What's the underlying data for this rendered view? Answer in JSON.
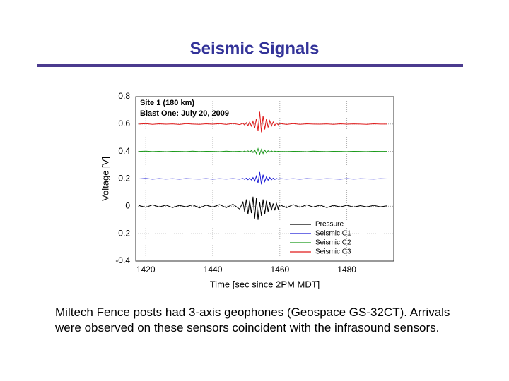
{
  "slide": {
    "title": "Seismic Signals",
    "body": "Miltech Fence posts had 3-axis geophones (Geospace GS-32CT). Arrivals were observed on these sensors coincident with the infrasound sensors."
  },
  "chart_data": {
    "type": "line",
    "annotations": [
      "Site 1 (180 km)",
      "Blast One: July 20, 2009"
    ],
    "x_label": "Time [sec since 2PM MDT]",
    "y_label": "Voltage [V]",
    "x": [
      1418,
      1420,
      1422,
      1424,
      1426,
      1428,
      1430,
      1432,
      1434,
      1436,
      1438,
      1440,
      1442,
      1444,
      1446,
      1448,
      1449,
      1449.5,
      1450,
      1450.5,
      1451,
      1451.5,
      1452,
      1452.5,
      1453,
      1453.5,
      1454,
      1454.5,
      1455,
      1455.5,
      1456,
      1456.5,
      1457,
      1457.5,
      1458,
      1458.5,
      1459,
      1459.5,
      1460,
      1462,
      1464,
      1466,
      1468,
      1470,
      1472,
      1474,
      1476,
      1478,
      1480,
      1482,
      1484,
      1486,
      1488,
      1490,
      1492
    ],
    "series": [
      {
        "name": "Pressure",
        "color": "#000000",
        "values": [
          0.005,
          -0.008,
          0.01,
          -0.005,
          0.008,
          -0.01,
          0.006,
          -0.004,
          0.01,
          -0.012,
          0.008,
          -0.006,
          0.012,
          -0.01,
          0.015,
          -0.02,
          0.03,
          -0.04,
          0.05,
          -0.06,
          0.04,
          -0.05,
          0.07,
          -0.09,
          0.06,
          -0.1,
          0.03,
          -0.07,
          0.05,
          -0.06,
          0.04,
          -0.04,
          0.03,
          -0.03,
          0.02,
          -0.03,
          0.02,
          -0.02,
          0.01,
          -0.01,
          0.012,
          -0.008,
          0.01,
          -0.006,
          0.008,
          -0.01,
          0.006,
          -0.005,
          0.007,
          -0.006,
          0.004,
          -0.005,
          0.006,
          -0.004,
          0.003
        ]
      },
      {
        "name": "Seismic C1",
        "color": "#1a1ad6",
        "values": [
          0.2,
          0.203,
          0.198,
          0.202,
          0.199,
          0.201,
          0.198,
          0.202,
          0.2,
          0.199,
          0.202,
          0.198,
          0.201,
          0.199,
          0.202,
          0.198,
          0.203,
          0.196,
          0.205,
          0.194,
          0.206,
          0.192,
          0.21,
          0.185,
          0.22,
          0.17,
          0.25,
          0.16,
          0.23,
          0.18,
          0.215,
          0.19,
          0.21,
          0.193,
          0.205,
          0.196,
          0.203,
          0.198,
          0.202,
          0.199,
          0.201,
          0.198,
          0.202,
          0.2,
          0.199,
          0.201,
          0.2,
          0.198,
          0.202,
          0.199,
          0.201,
          0.2,
          0.199,
          0.201,
          0.2
        ]
      },
      {
        "name": "Seismic C2",
        "color": "#1a9a1a",
        "values": [
          0.4,
          0.402,
          0.399,
          0.401,
          0.398,
          0.401,
          0.4,
          0.399,
          0.402,
          0.399,
          0.401,
          0.4,
          0.398,
          0.402,
          0.399,
          0.401,
          0.398,
          0.403,
          0.396,
          0.404,
          0.395,
          0.406,
          0.392,
          0.41,
          0.385,
          0.42,
          0.38,
          0.415,
          0.385,
          0.41,
          0.39,
          0.405,
          0.395,
          0.404,
          0.397,
          0.402,
          0.399,
          0.401,
          0.4,
          0.399,
          0.401,
          0.4,
          0.398,
          0.402,
          0.4,
          0.399,
          0.401,
          0.4,
          0.399,
          0.401,
          0.4,
          0.399,
          0.401,
          0.4,
          0.4
        ]
      },
      {
        "name": "Seismic C3",
        "color": "#e01a1a",
        "values": [
          0.6,
          0.603,
          0.598,
          0.602,
          0.599,
          0.601,
          0.597,
          0.603,
          0.6,
          0.598,
          0.602,
          0.599,
          0.603,
          0.597,
          0.604,
          0.596,
          0.605,
          0.593,
          0.61,
          0.588,
          0.615,
          0.585,
          0.62,
          0.57,
          0.64,
          0.55,
          0.69,
          0.54,
          0.66,
          0.56,
          0.64,
          0.575,
          0.625,
          0.585,
          0.615,
          0.59,
          0.607,
          0.594,
          0.604,
          0.597,
          0.603,
          0.598,
          0.602,
          0.6,
          0.599,
          0.601,
          0.598,
          0.602,
          0.599,
          0.601,
          0.6,
          0.598,
          0.602,
          0.6,
          0.6
        ]
      }
    ],
    "xlim": [
      1417,
      1494
    ],
    "xticks": [
      1420,
      1440,
      1460,
      1480
    ],
    "ylim": [
      -0.4,
      0.8
    ],
    "yticks": [
      -0.4,
      -0.2,
      0,
      0.2,
      0.4,
      0.6,
      0.8
    ],
    "grid": true,
    "legend": "lower-right"
  }
}
